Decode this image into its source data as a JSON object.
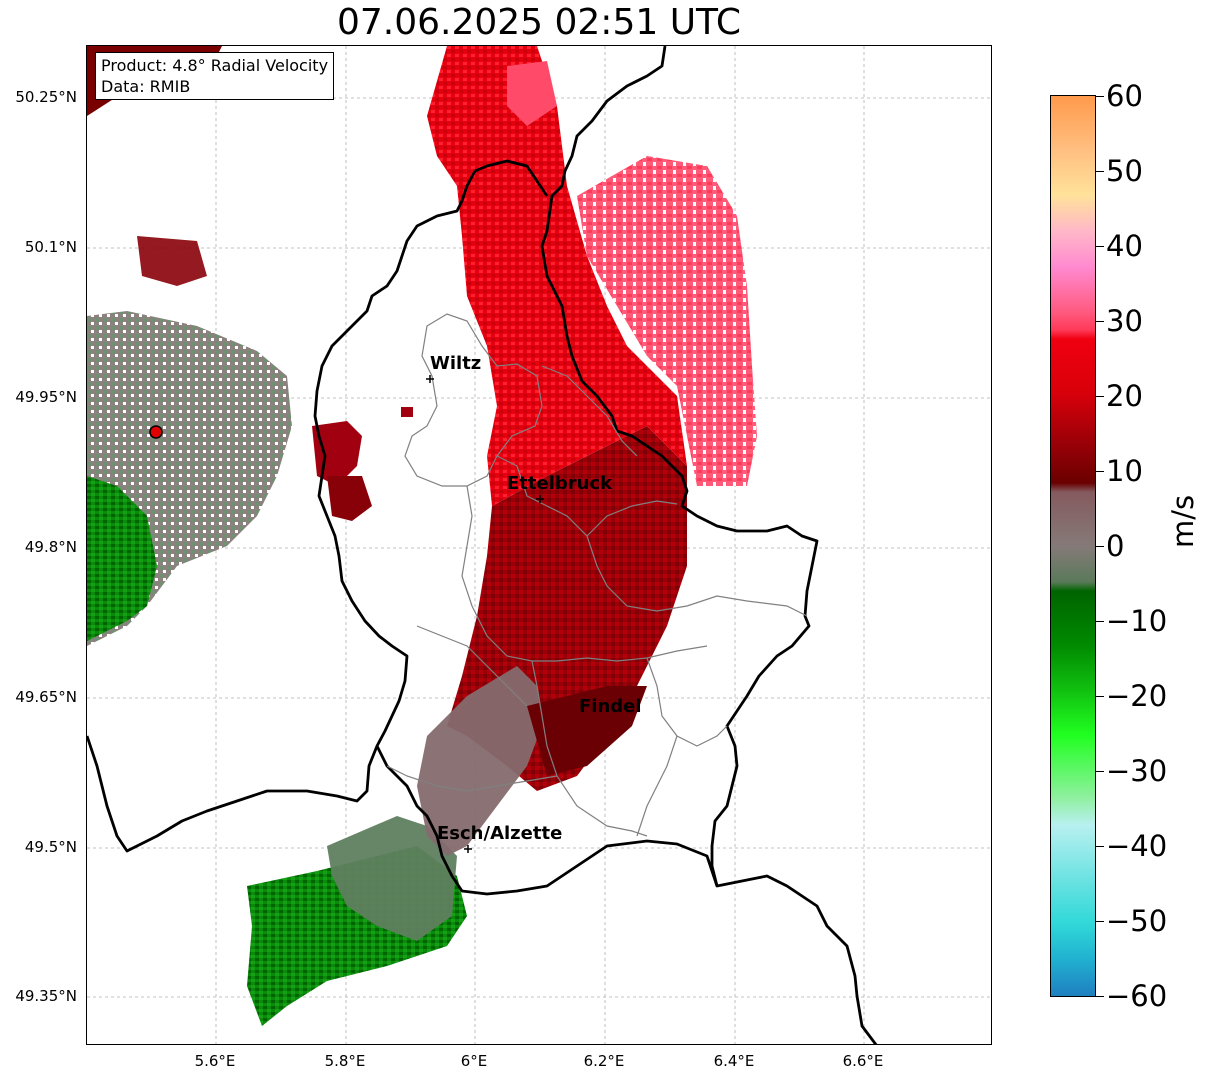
{
  "title": "07.06.2025 02:51 UTC",
  "info_box": {
    "product": "Product: 4.8° Radial Velocity",
    "data": "Data: RMIB"
  },
  "map": {
    "lat_ticks": [
      "50.25°N",
      "50.1°N",
      "49.95°N",
      "49.8°N",
      "49.65°N",
      "49.5°N",
      "49.35°N"
    ],
    "lon_ticks": [
      "5.6°E",
      "5.8°E",
      "6°E",
      "6.2°E",
      "6.4°E",
      "6.6°E"
    ],
    "cities": [
      {
        "name": "Wiltz"
      },
      {
        "name": "Ettelbruck"
      },
      {
        "name": "Findel"
      },
      {
        "name": "Esch/Alzette"
      }
    ],
    "radar_site_color": "#e00000",
    "border_color": "#000000",
    "canton_border_color": "#808080",
    "gridline_color": "#b0b0b0"
  },
  "colorbar": {
    "unit": "m/s",
    "ticks": [
      "60",
      "50",
      "40",
      "30",
      "20",
      "10",
      "0",
      "−10",
      "−20",
      "−30",
      "−40",
      "−50",
      "−60"
    ],
    "range": [
      -60,
      60
    ],
    "colors": {
      "receding_strong": "#ff9a4c",
      "receding": "#e80010",
      "near_zero": "#857a78",
      "approaching": "#007a00",
      "approaching_strong": "#1f7fc0"
    }
  }
}
